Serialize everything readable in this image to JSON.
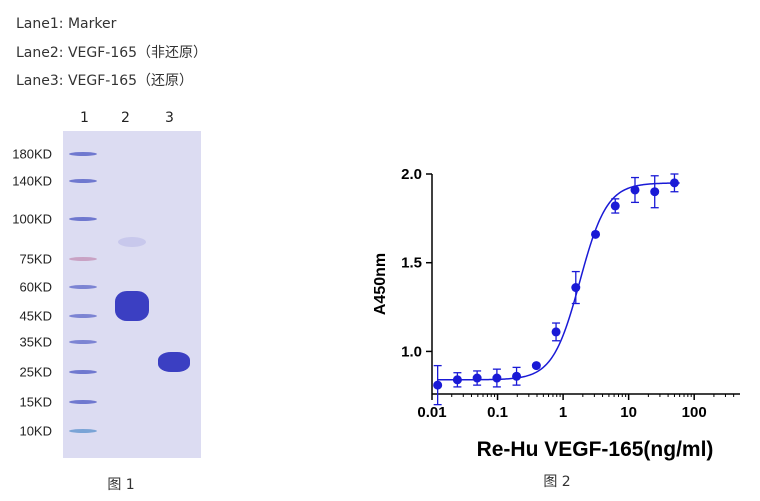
{
  "legend": [
    "Lane1: Marker",
    "Lane2: VEGF-165（非还原）",
    "Lane3: VEGF-165（还原）"
  ],
  "gel": {
    "lanes": [
      "1",
      "2",
      "3"
    ],
    "markers": [
      "180KD",
      "140KD",
      "100KD",
      "75KD",
      "60KD",
      "45KD",
      "35KD",
      "25KD",
      "15KD",
      "10KD"
    ],
    "caption": "图 1"
  },
  "chart_data": {
    "type": "scatter",
    "xlabel": "Re-Hu VEGF-165(ng/ml)",
    "ylabel": "A450nm",
    "x_scale": "log",
    "xlim": [
      0.01,
      500
    ],
    "ylim": [
      0.76,
      2.0
    ],
    "x_ticks": [
      "0.01",
      "0.1",
      "1",
      "10",
      "100"
    ],
    "y_ticks": [
      "1.0",
      "1.5",
      "2.0"
    ],
    "grid": false,
    "x": [
      0.0122,
      0.0244,
      0.0488,
      0.0977,
      0.195,
      0.391,
      0.781,
      1.5625,
      3.125,
      6.25,
      12.5,
      25,
      50
    ],
    "y": [
      0.81,
      0.84,
      0.85,
      0.85,
      0.86,
      0.92,
      1.11,
      1.36,
      1.66,
      1.82,
      1.91,
      1.9,
      1.95
    ],
    "error": [
      0.11,
      0.04,
      0.04,
      0.05,
      0.05,
      0.0,
      0.05,
      0.09,
      0.0,
      0.04,
      0.07,
      0.09,
      0.05
    ],
    "fit": {
      "bottom": 0.84,
      "top": 1.95,
      "ec50": 1.8,
      "hill": 2.1
    },
    "colors": {
      "series": "#1a1ad6"
    },
    "caption": "图 2"
  },
  "colors": {
    "band_blue": "#3b3fc2",
    "marker_pink": "#c9a2c4",
    "gel_bg": "#dcdcf2"
  }
}
